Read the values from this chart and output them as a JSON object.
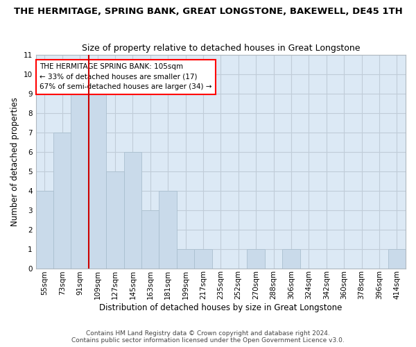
{
  "title": "THE HERMITAGE, SPRING BANK, GREAT LONGSTONE, BAKEWELL, DE45 1TH",
  "subtitle": "Size of property relative to detached houses in Great Longstone",
  "xlabel": "Distribution of detached houses by size in Great Longstone",
  "ylabel": "Number of detached properties",
  "categories": [
    "55sqm",
    "73sqm",
    "91sqm",
    "109sqm",
    "127sqm",
    "145sqm",
    "163sqm",
    "181sqm",
    "199sqm",
    "217sqm",
    "235sqm",
    "252sqm",
    "270sqm",
    "288sqm",
    "306sqm",
    "324sqm",
    "342sqm",
    "360sqm",
    "378sqm",
    "396sqm",
    "414sqm"
  ],
  "values": [
    4,
    7,
    9,
    9,
    5,
    6,
    3,
    4,
    1,
    1,
    0,
    0,
    1,
    0,
    1,
    0,
    0,
    0,
    0,
    0,
    1
  ],
  "bar_color": "#c9daea",
  "bar_edgecolor": "#aabfcf",
  "vline_color": "#cc0000",
  "vline_pos": 2.5,
  "ylim": [
    0,
    11
  ],
  "yticks": [
    0,
    1,
    2,
    3,
    4,
    5,
    6,
    7,
    8,
    9,
    10,
    11
  ],
  "annotation_title": "THE HERMITAGE SPRING BANK: 105sqm",
  "annotation_line1": "← 33% of detached houses are smaller (17)",
  "annotation_line2": "67% of semi-detached houses are larger (34) →",
  "footer_line1": "Contains HM Land Registry data © Crown copyright and database right 2024.",
  "footer_line2": "Contains public sector information licensed under the Open Government Licence v3.0.",
  "bg_color": "#ffffff",
  "plot_bg_color": "#dce9f5",
  "grid_color": "#c0ccd8",
  "title_fontsize": 9.5,
  "subtitle_fontsize": 9,
  "ylabel_fontsize": 8.5,
  "xlabel_fontsize": 8.5,
  "tick_fontsize": 7.5,
  "ann_fontsize": 7.5,
  "footer_fontsize": 6.5
}
